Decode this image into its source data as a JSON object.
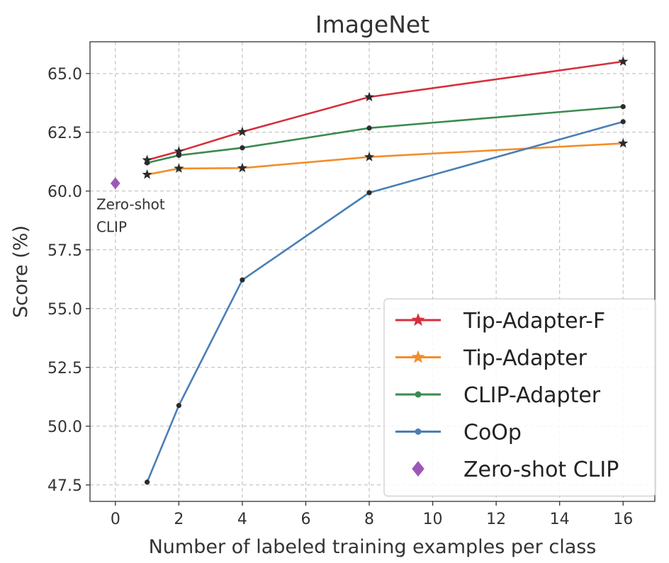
{
  "chart_data": {
    "type": "line",
    "title": "ImageNet",
    "xlabel": "Number of labeled training examples per class",
    "ylabel": "Score (%)",
    "xlim": [
      -0.8,
      17.0
    ],
    "ylim": [
      46.8,
      66.35
    ],
    "xticks": [
      0,
      2,
      4,
      6,
      8,
      10,
      12,
      14,
      16
    ],
    "yticks": [
      47.5,
      50.0,
      52.5,
      55.0,
      57.5,
      60.0,
      62.5,
      65.0
    ],
    "ytick_labels": [
      "47.5",
      "50.0",
      "52.5",
      "55.0",
      "57.5",
      "60.0",
      "62.5",
      "65.0"
    ],
    "grid": true,
    "legend_position": "lower-right",
    "series": [
      {
        "name": "Tip-Adapter-F",
        "color": "#d62f3c",
        "marker": "star",
        "x": [
          1,
          2,
          4,
          8,
          16
        ],
        "y": [
          61.32,
          61.69,
          62.52,
          64.0,
          65.51
        ]
      },
      {
        "name": "Tip-Adapter",
        "color": "#f28e2b",
        "marker": "star",
        "x": [
          1,
          2,
          4,
          8,
          16
        ],
        "y": [
          60.7,
          60.96,
          60.98,
          61.45,
          62.03
        ]
      },
      {
        "name": "CLIP-Adapter",
        "color": "#3a8a4e",
        "marker": "dot",
        "x": [
          1,
          2,
          4,
          8,
          16
        ],
        "y": [
          61.2,
          61.52,
          61.84,
          62.68,
          63.59
        ]
      },
      {
        "name": "CoOp",
        "color": "#4a7fb5",
        "marker": "dot",
        "x": [
          1,
          2,
          4,
          8,
          16
        ],
        "y": [
          47.62,
          50.88,
          56.22,
          59.93,
          62.95
        ]
      }
    ],
    "points": [
      {
        "name": "Zero-shot CLIP",
        "color": "#9b59b6",
        "marker": "diamond",
        "x": 0,
        "y": 60.33
      }
    ],
    "annotations": [
      {
        "lines": [
          "Zero-shot",
          "CLIP"
        ],
        "x": -0.6,
        "y": 59.5
      }
    ]
  }
}
